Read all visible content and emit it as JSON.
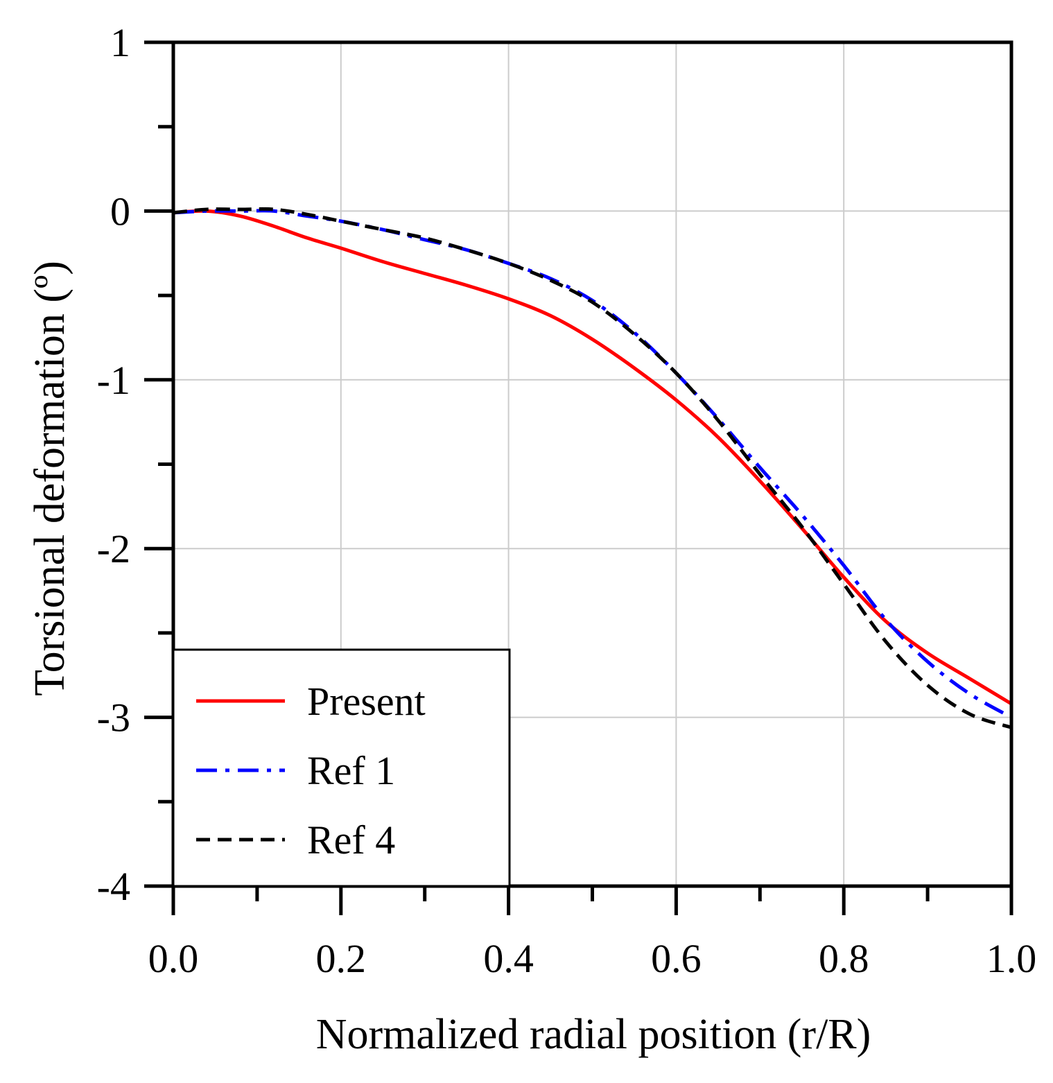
{
  "chart_data": {
    "type": "line",
    "title": "",
    "xlabel": "Normalized radial position (r/R)",
    "ylabel": "Torsional deformation (º)",
    "xlim": [
      0.0,
      1.0
    ],
    "ylim": [
      -4,
      1
    ],
    "grid": true,
    "legend_position": "bottom-left",
    "x_ticks": [
      {
        "value": 0.0,
        "label": "0.0"
      },
      {
        "value": 0.2,
        "label": "0.2"
      },
      {
        "value": 0.4,
        "label": "0.4"
      },
      {
        "value": 0.6,
        "label": "0.6"
      },
      {
        "value": 0.8,
        "label": "0.8"
      },
      {
        "value": 1.0,
        "label": "1.0"
      }
    ],
    "y_ticks": [
      {
        "value": 1,
        "label": "1"
      },
      {
        "value": 0,
        "label": "0"
      },
      {
        "value": -1,
        "label": "-1"
      },
      {
        "value": -2,
        "label": "-2"
      },
      {
        "value": -3,
        "label": "-3"
      },
      {
        "value": -4,
        "label": "-4"
      }
    ],
    "x_minor_ticks": [
      0.1,
      0.3,
      0.5,
      0.7,
      0.9
    ],
    "y_minor_ticks": [
      0.5,
      -0.5,
      -1.5,
      -2.5,
      -3.5
    ],
    "series": [
      {
        "name": "Present",
        "color": "#ff0000",
        "style": "solid",
        "x": [
          0.0,
          0.04,
          0.08,
          0.12,
          0.16,
          0.2,
          0.25,
          0.3,
          0.35,
          0.4,
          0.45,
          0.5,
          0.55,
          0.6,
          0.65,
          0.7,
          0.75,
          0.8,
          0.85,
          0.9,
          0.95,
          1.0
        ],
        "y": [
          -0.01,
          0.0,
          -0.03,
          -0.09,
          -0.16,
          -0.22,
          -0.3,
          -0.37,
          -0.44,
          -0.52,
          -0.62,
          -0.76,
          -0.93,
          -1.12,
          -1.34,
          -1.6,
          -1.88,
          -2.17,
          -2.43,
          -2.62,
          -2.77,
          -2.92
        ]
      },
      {
        "name": "Ref 1",
        "color": "#0000ff",
        "style": "dashdot",
        "x": [
          0.0,
          0.04,
          0.08,
          0.12,
          0.16,
          0.2,
          0.25,
          0.3,
          0.35,
          0.4,
          0.45,
          0.5,
          0.55,
          0.6,
          0.65,
          0.7,
          0.75,
          0.8,
          0.85,
          0.9,
          0.95,
          1.0
        ],
        "y": [
          -0.01,
          0.0,
          0.0,
          0.0,
          -0.03,
          -0.06,
          -0.11,
          -0.17,
          -0.23,
          -0.31,
          -0.4,
          -0.53,
          -0.72,
          -0.96,
          -1.23,
          -1.52,
          -1.8,
          -2.1,
          -2.42,
          -2.67,
          -2.86,
          -3.0
        ]
      },
      {
        "name": "Ref 4",
        "color": "#000000",
        "style": "dashed",
        "x": [
          0.0,
          0.04,
          0.08,
          0.12,
          0.16,
          0.2,
          0.25,
          0.3,
          0.35,
          0.4,
          0.45,
          0.5,
          0.55,
          0.6,
          0.65,
          0.7,
          0.75,
          0.8,
          0.85,
          0.9,
          0.95,
          1.0
        ],
        "y": [
          -0.01,
          0.01,
          0.01,
          0.01,
          -0.02,
          -0.06,
          -0.11,
          -0.16,
          -0.23,
          -0.31,
          -0.41,
          -0.54,
          -0.73,
          -0.96,
          -1.24,
          -1.56,
          -1.87,
          -2.21,
          -2.55,
          -2.81,
          -2.98,
          -3.06
        ]
      }
    ]
  }
}
